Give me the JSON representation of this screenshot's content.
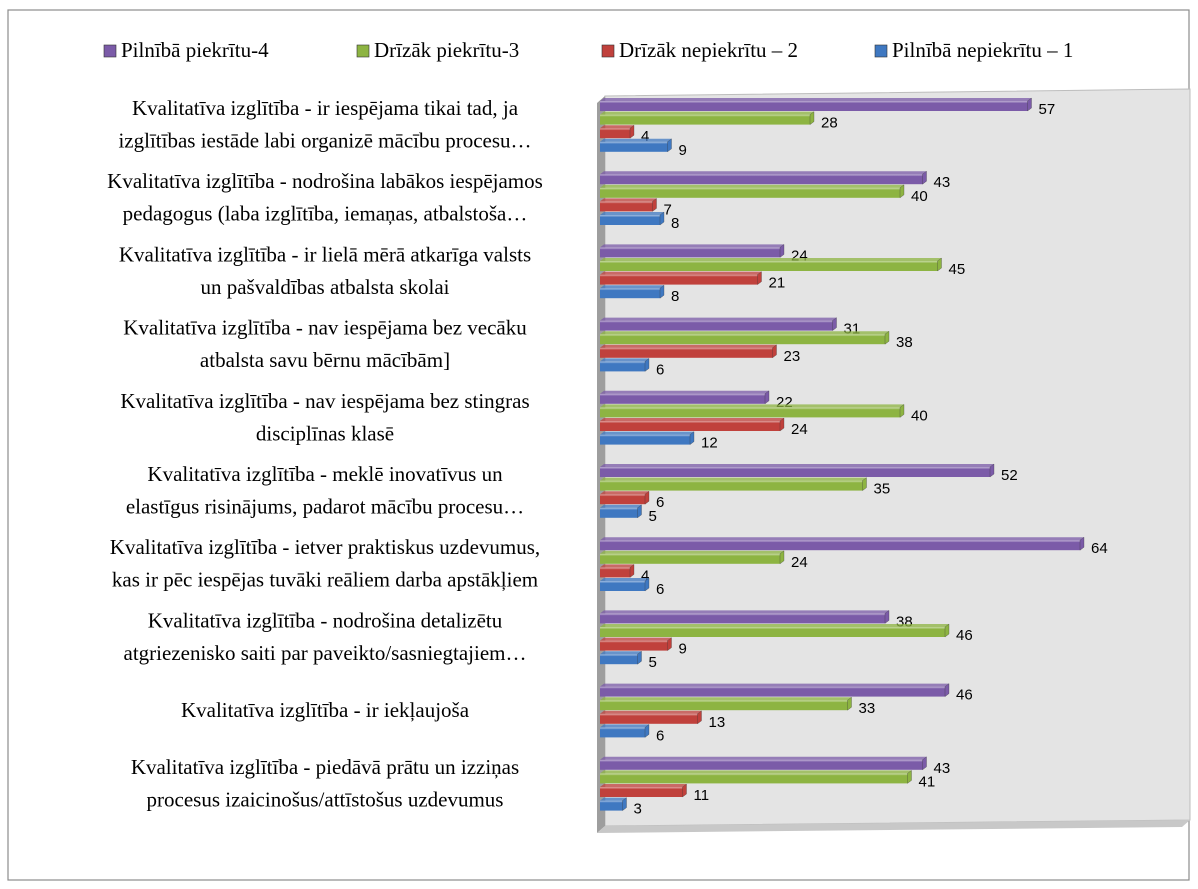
{
  "chart_data": {
    "type": "bar",
    "orientation": "horizontal",
    "categories": [
      [
        "Kvalitatīva izglītība - ir iespējama tikai tad, ja",
        "izglītības iestāde labi organizē mācību procesu…"
      ],
      [
        "Kvalitatīva izglītība - nodrošina labākos iespējamos",
        "pedagogus (laba izglītība, iemaņas, atbalstoša…"
      ],
      [
        "Kvalitatīva izglītība -  ir lielā mērā atkarīga valsts",
        "un pašvaldības atbalsta skolai"
      ],
      [
        "Kvalitatīva izglītība - nav iespējama bez vecāku",
        "atbalsta savu bērnu mācībām]"
      ],
      [
        "Kvalitatīva izglītība - nav iespējama bez stingras",
        "disciplīnas klasē"
      ],
      [
        "Kvalitatīva izglītība -  meklē inovatīvus un",
        "elastīgus risinājums, padarot mācību procesu…"
      ],
      [
        "Kvalitatīva izglītība  - ietver praktiskus uzdevumus,",
        "kas ir pēc iespējas tuvāki reāliem darba apstākļiem"
      ],
      [
        "Kvalitatīva izglītība -  nodrošina detalizētu",
        "atgriezenisko saiti par paveikto/sasniegtajiem…"
      ],
      [
        "Kvalitatīva izglītība - ir iekļaujoša"
      ],
      [
        "Kvalitatīva izglītība - piedāvā prātu un izziņas",
        "procesus izaicinošus/attīstošus uzdevumus"
      ]
    ],
    "series": [
      {
        "name": "Pilnībā piekrītu-4",
        "color": "#7b5ba8",
        "values": [
          57,
          43,
          24,
          31,
          22,
          52,
          64,
          38,
          46,
          43
        ]
      },
      {
        "name": "Drīzāk piekrītu-3",
        "color": "#8db442",
        "values": [
          28,
          40,
          45,
          38,
          40,
          35,
          24,
          46,
          33,
          41
        ]
      },
      {
        "name": "Drīzāk nepiekrītu – 2",
        "color": "#c0413c",
        "values": [
          4,
          7,
          21,
          23,
          24,
          6,
          4,
          9,
          13,
          11
        ]
      },
      {
        "name": "Pilnībā nepiekrītu – 1",
        "color": "#3f78c1",
        "values": [
          9,
          8,
          8,
          6,
          12,
          5,
          6,
          5,
          6,
          3
        ]
      }
    ],
    "xlim": [
      0,
      76
    ],
    "legend": "top"
  }
}
